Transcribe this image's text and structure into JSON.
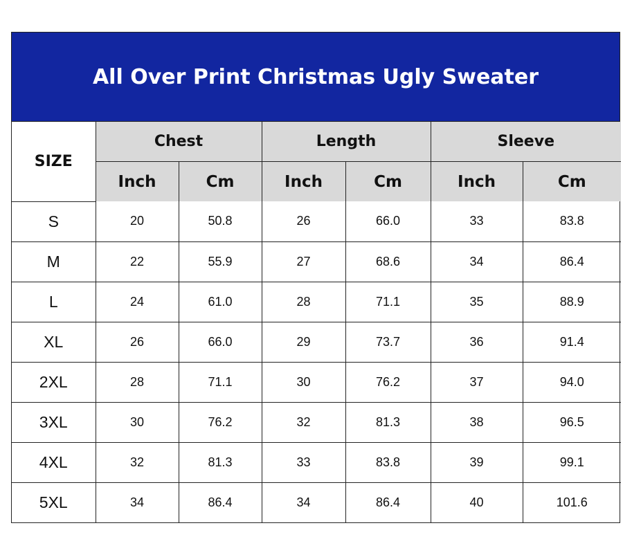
{
  "title": "All Over Print Christmas Ugly Sweater",
  "headers": {
    "size": "SIZE",
    "groups": [
      "Chest",
      "Length",
      "Sleeve"
    ],
    "units": [
      "Inch",
      "Cm",
      "Inch",
      "Cm",
      "Inch",
      "Cm"
    ]
  },
  "rows": [
    {
      "size": "S",
      "values": [
        "20",
        "50.8",
        "26",
        "66.0",
        "33",
        "83.8"
      ]
    },
    {
      "size": "M",
      "values": [
        "22",
        "55.9",
        "27",
        "68.6",
        "34",
        "86.4"
      ]
    },
    {
      "size": "L",
      "values": [
        "24",
        "61.0",
        "28",
        "71.1",
        "35",
        "88.9"
      ]
    },
    {
      "size": "XL",
      "values": [
        "26",
        "66.0",
        "29",
        "73.7",
        "36",
        "91.4"
      ]
    },
    {
      "size": "2XL",
      "values": [
        "28",
        "71.1",
        "30",
        "76.2",
        "37",
        "94.0"
      ]
    },
    {
      "size": "3XL",
      "values": [
        "30",
        "76.2",
        "32",
        "81.3",
        "38",
        "96.5"
      ]
    },
    {
      "size": "4XL",
      "values": [
        "32",
        "81.3",
        "33",
        "83.8",
        "39",
        "99.1"
      ]
    },
    {
      "size": "5XL",
      "values": [
        "34",
        "86.4",
        "34",
        "86.4",
        "40",
        "101.6"
      ]
    }
  ],
  "colors": {
    "title_background": "#1226a0",
    "header_background": "#d9d9d9"
  }
}
